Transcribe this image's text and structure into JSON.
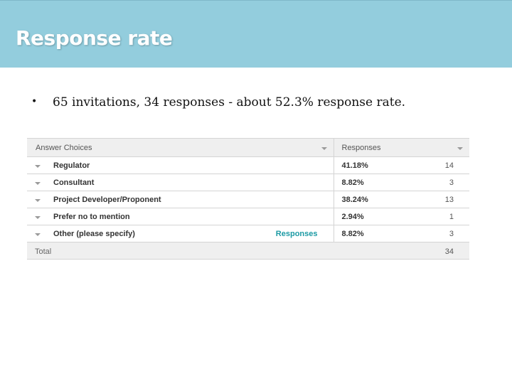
{
  "slide": {
    "title": "Response rate",
    "bullet": "65 invitations, 34 responses - about 52.3% response rate."
  },
  "table": {
    "header": {
      "choices": "Answer Choices",
      "responses": "Responses"
    },
    "rows": [
      {
        "label": "Regulator",
        "percent": "41.18%",
        "count": "14",
        "link": ""
      },
      {
        "label": "Consultant",
        "percent": "8.82%",
        "count": "3",
        "link": ""
      },
      {
        "label": "Project Developer/Proponent",
        "percent": "38.24%",
        "count": "13",
        "link": ""
      },
      {
        "label": "Prefer no to mention",
        "percent": "2.94%",
        "count": "1",
        "link": ""
      },
      {
        "label": "Other (please specify)",
        "percent": "8.82%",
        "count": "3",
        "link": "Responses"
      }
    ],
    "total": {
      "label": "Total",
      "count": "34"
    }
  },
  "colors": {
    "title_bar": "#93cddd",
    "link": "#1c9aa4",
    "header_bg": "#efefef"
  },
  "icons": [
    "chevron-down-icon",
    "bullet-icon"
  ]
}
